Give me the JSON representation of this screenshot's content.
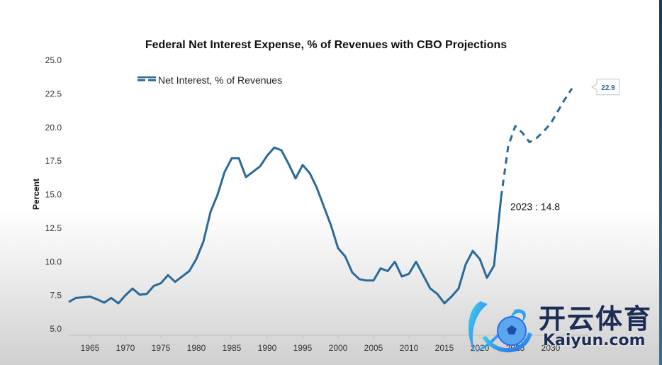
{
  "chart_data": {
    "type": "line",
    "title": "Federal Net Interest Expense, % of Revenues with CBO Projections",
    "xlabel": "",
    "ylabel": "Percent",
    "xlim": [
      1962,
      2034
    ],
    "ylim": [
      5.0,
      25.0
    ],
    "yticks": [
      "5.0",
      "7.5",
      "10.0",
      "12.5",
      "15.0",
      "17.5",
      "20.0",
      "22.5",
      "25.0"
    ],
    "xticks": [
      "1965",
      "1970",
      "1975",
      "1980",
      "1985",
      "1990",
      "1995",
      "2000",
      "2005",
      "2010",
      "2015",
      "2020",
      "2025",
      "2030"
    ],
    "grid": false,
    "legend": {
      "position": "top-left",
      "entries": [
        "Net Interest, % of Revenues"
      ]
    },
    "series": [
      {
        "name": "Net Interest, % of Revenues (actual)",
        "style": "solid",
        "color": "#2a6a96",
        "x": [
          1962,
          1963,
          1964,
          1965,
          1966,
          1967,
          1968,
          1969,
          1970,
          1971,
          1972,
          1973,
          1974,
          1975,
          1976,
          1977,
          1978,
          1979,
          1980,
          1981,
          1982,
          1983,
          1984,
          1985,
          1986,
          1987,
          1988,
          1989,
          1990,
          1991,
          1992,
          1993,
          1994,
          1995,
          1996,
          1997,
          1998,
          1999,
          2000,
          2001,
          2002,
          2003,
          2004,
          2005,
          2006,
          2007,
          2008,
          2009,
          2010,
          2011,
          2012,
          2013,
          2014,
          2015,
          2016,
          2017,
          2018,
          2019,
          2020,
          2021,
          2022,
          2023
        ],
        "values": [
          7.0,
          7.3,
          7.35,
          7.4,
          7.2,
          6.95,
          7.3,
          6.9,
          7.5,
          8.0,
          7.55,
          7.6,
          8.2,
          8.4,
          9.0,
          8.5,
          8.9,
          9.3,
          10.2,
          11.5,
          13.7,
          15.0,
          16.7,
          17.7,
          17.7,
          16.3,
          16.7,
          17.1,
          17.9,
          18.5,
          18.3,
          17.3,
          16.2,
          17.2,
          16.6,
          15.5,
          14.1,
          12.7,
          11.0,
          10.4,
          9.2,
          8.7,
          8.6,
          8.6,
          9.5,
          9.3,
          10.0,
          8.9,
          9.1,
          10.0,
          9.0,
          8.0,
          7.6,
          6.9,
          7.4,
          8.0,
          9.8,
          10.8,
          10.2,
          8.8,
          9.7,
          14.8
        ]
      },
      {
        "name": "Net Interest, % of Revenues (CBO projection)",
        "style": "dashed",
        "color": "#2a6a96",
        "x": [
          2023,
          2024,
          2025,
          2026,
          2027,
          2028,
          2029,
          2030,
          2031,
          2032,
          2033
        ],
        "values": [
          14.8,
          18.6,
          20.1,
          19.6,
          18.9,
          19.2,
          19.7,
          20.3,
          21.2,
          22.1,
          22.9
        ]
      }
    ],
    "annotations": [
      {
        "text": "2023 : 14.8",
        "x": 2023,
        "y": 14.8
      },
      {
        "text": "22.9",
        "x": 2033,
        "y": 22.9,
        "style": "callout-box"
      }
    ]
  },
  "watermark": {
    "logo_text": "开云体育",
    "url_text": "Kaiyun.com"
  }
}
